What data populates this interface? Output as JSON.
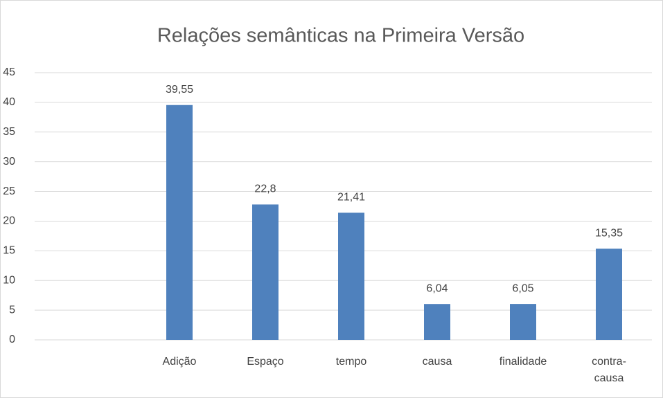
{
  "chart_data": {
    "type": "bar",
    "title": "Relações semânticas na Primeira Versão",
    "categories": [
      null,
      "Adição",
      "Espaço",
      "tempo",
      "causa",
      "finalidade",
      "contra-causa"
    ],
    "values": [
      null,
      39.55,
      22.8,
      21.41,
      6.04,
      6.05,
      15.35
    ],
    "value_labels": [
      null,
      "39,55",
      "22,8",
      "21,41",
      "6,04",
      "6,05",
      "15,35"
    ],
    "color": "#4f81bd",
    "ylim": [
      0,
      45
    ],
    "yticks": [
      0,
      5,
      10,
      15,
      20,
      25,
      30,
      35,
      40,
      45
    ],
    "grid": true
  }
}
